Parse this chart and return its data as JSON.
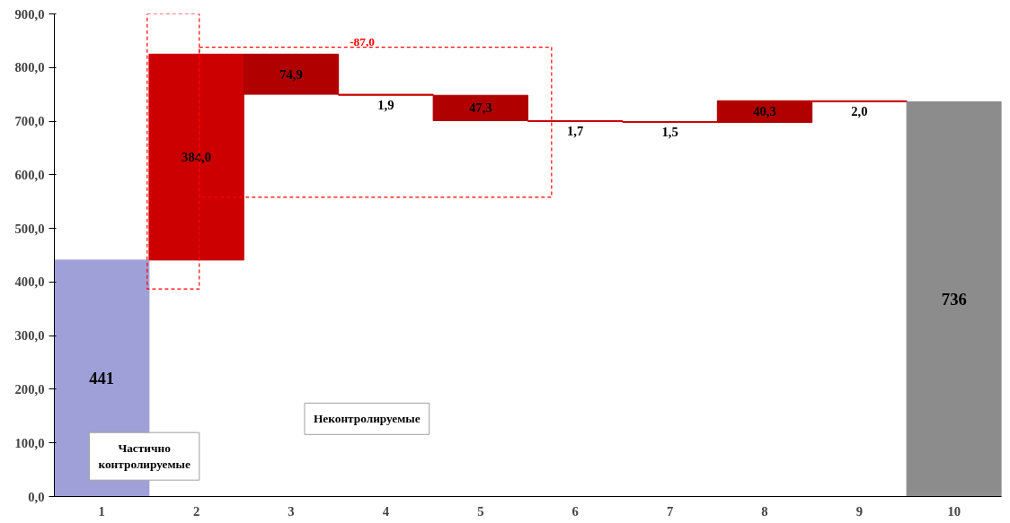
{
  "chart_data": {
    "type": "bar",
    "categories": [
      "1",
      "2",
      "3",
      "4",
      "5",
      "6",
      "7",
      "8",
      "9",
      "10"
    ],
    "values": [
      441,
      384.0,
      -74.9,
      -1.9,
      -47.3,
      -1.7,
      -1.5,
      40.3,
      -2.0,
      736
    ],
    "base": [
      0,
      441,
      825,
      750.1,
      748.2,
      700.9,
      699.2,
      697.7,
      738,
      0
    ],
    "colors": [
      "#a0a0d8",
      "#cc0000",
      "#b00000",
      "#cc0000",
      "#b00000",
      "#cc0000",
      "#cc0000",
      "#b00000",
      "#cc0000",
      "#8c8c8c"
    ],
    "value_labels": [
      "441",
      "384,0",
      "74,9",
      "1,9",
      "47,3",
      "1,7",
      "1,5",
      "40,3",
      "2,0",
      "736"
    ],
    "ylim": [
      0,
      900
    ],
    "yticks": [
      {
        "value": 0,
        "label": "0,0"
      },
      {
        "value": 100,
        "label": "100,0"
      },
      {
        "value": 200,
        "label": "200,0"
      },
      {
        "value": 300,
        "label": "300,0"
      },
      {
        "value": 400,
        "label": "400,0"
      },
      {
        "value": 500,
        "label": "500,0"
      },
      {
        "value": 600,
        "label": "600,0"
      },
      {
        "value": 700,
        "label": "700,0"
      },
      {
        "value": 800,
        "label": "800,0"
      },
      {
        "value": 900,
        "label": "900,0"
      }
    ],
    "annotations": [
      "-87,0",
      "Частично контролируемые",
      "Неконтролируемые"
    ],
    "grid": false
  }
}
